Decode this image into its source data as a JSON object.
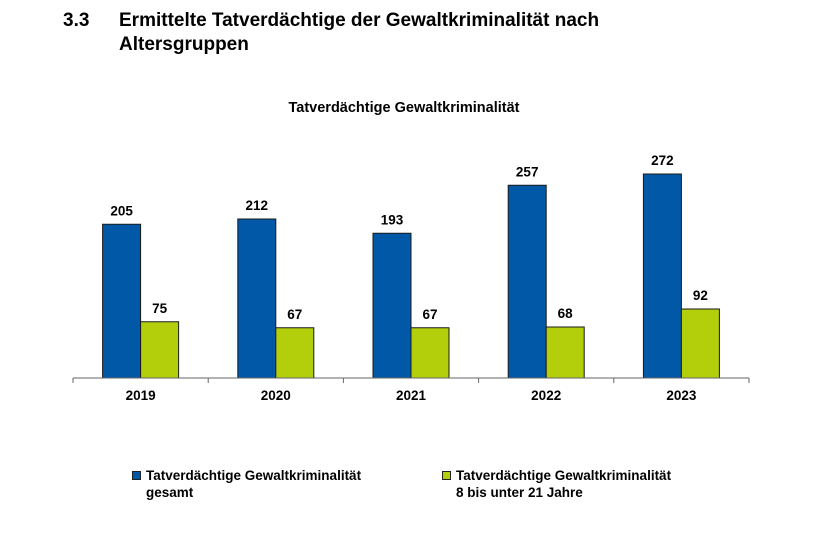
{
  "header": {
    "section_number": "3.3",
    "title_line1": "Ermittelte Tatverdächtige der Gewaltkriminalität nach",
    "title_line2": "Altersgruppen"
  },
  "legend": {
    "items": [
      {
        "line1": "Tatverdächtige Gewaltkriminalität",
        "line2": "gesamt"
      },
      {
        "line1": "Tatverdächtige Gewaltkriminalität",
        "line2": "8 bis unter 21 Jahre"
      }
    ]
  },
  "chart_data": {
    "type": "bar",
    "title": "Tatverdächtige Gewaltkriminalität",
    "categories": [
      "2019",
      "2020",
      "2021",
      "2022",
      "2023"
    ],
    "series": [
      {
        "name": "Tatverdächtige Gewaltkriminalität gesamt",
        "values": [
          205,
          212,
          193,
          257,
          272
        ],
        "color": "#0058A6"
      },
      {
        "name": "Tatverdächtige Gewaltkriminalität 8 bis unter 21 Jahre",
        "values": [
          75,
          67,
          67,
          68,
          92
        ],
        "color": "#B3CF0C"
      }
    ],
    "xlabel": "",
    "ylabel": "",
    "ylim": [
      0,
      272
    ],
    "grid": false,
    "data_labels": true,
    "legend_position": "bottom"
  }
}
